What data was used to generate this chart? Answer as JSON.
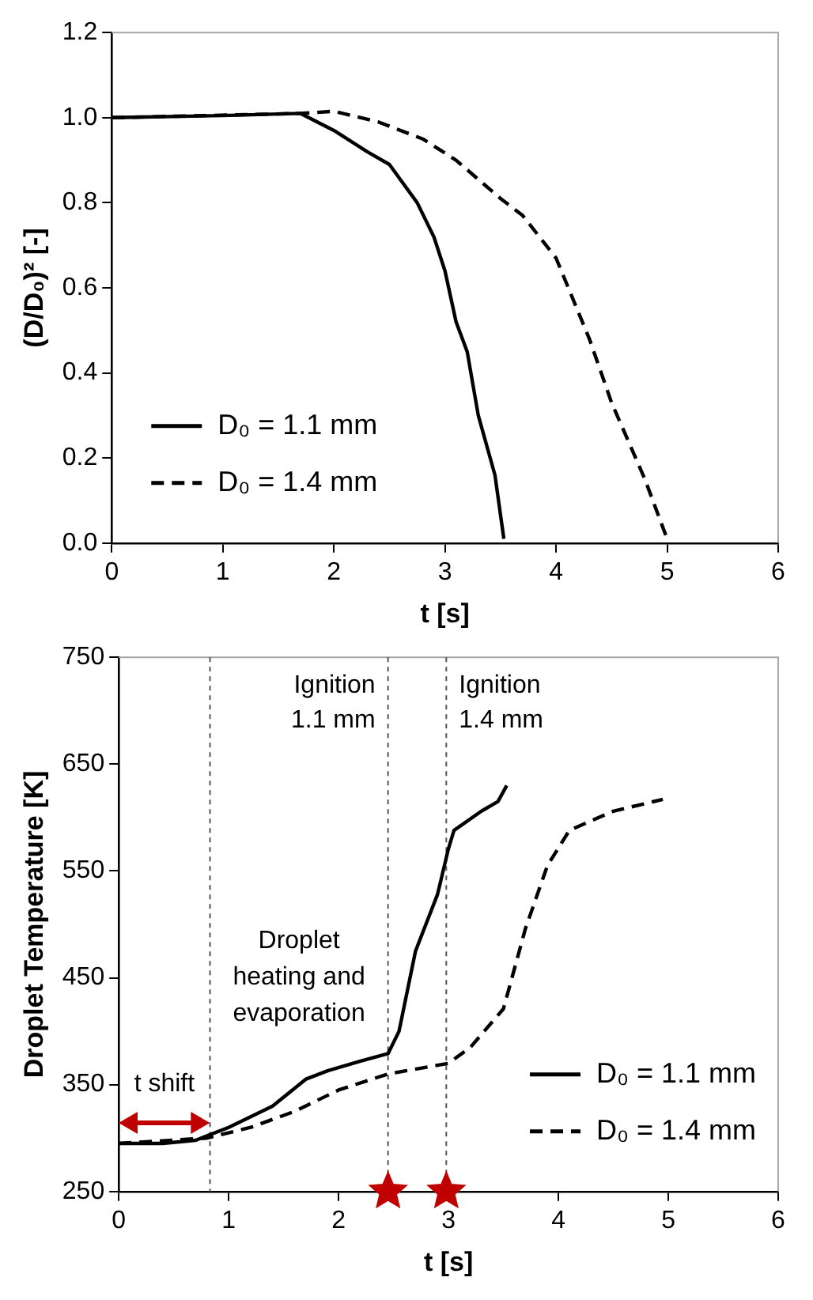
{
  "chart_data": [
    {
      "type": "line",
      "xlabel": "t [s]",
      "ylabel": "(D/D₀)² [-]",
      "xlim": [
        0,
        6
      ],
      "xticks": [
        0,
        1,
        2,
        3,
        4,
        5,
        6
      ],
      "ylim": [
        0,
        1.2
      ],
      "yticks": [
        {
          "value": 0,
          "label": "0.0"
        },
        0.2,
        0.4,
        0.6,
        0.8,
        {
          "value": 1,
          "label": "1.0"
        },
        1.2
      ],
      "legend": "bottom left",
      "marker": "none",
      "series": [
        {
          "name": "D₀ = 1.1 mm",
          "color": "#000000",
          "line_style": "solid",
          "x": [
            0,
            1,
            1.7,
            2,
            2.3,
            2.5,
            2.75,
            2.9,
            3.0,
            3.1,
            3.2,
            3.3,
            3.45,
            3.53
          ],
          "values": [
            1.0,
            1.005,
            1.01,
            0.97,
            0.92,
            0.89,
            0.8,
            0.72,
            0.64,
            0.52,
            0.45,
            0.3,
            0.16,
            0.01
          ]
        },
        {
          "name": "D₀ = 1.4 mm",
          "color": "#000000",
          "line_style": "dashed",
          "x": [
            0,
            1.7,
            2,
            2.4,
            2.8,
            3.1,
            3.5,
            3.7,
            4,
            4.3,
            4.5,
            4.8,
            5.0
          ],
          "values": [
            1.0,
            1.01,
            1.015,
            0.99,
            0.95,
            0.9,
            0.81,
            0.77,
            0.67,
            0.48,
            0.33,
            0.15,
            0.01
          ]
        }
      ]
    },
    {
      "type": "line",
      "xlabel": "t [s]",
      "ylabel": "Droplet Temperature [K]",
      "xlim": [
        0,
        6
      ],
      "xticks": [
        0,
        1,
        2,
        3,
        4,
        5,
        6
      ],
      "ylim": [
        250,
        750
      ],
      "yticks": [
        250,
        350,
        450,
        550,
        650,
        750
      ],
      "legend": "bottom right",
      "marker": "none",
      "series": [
        {
          "name": "D₀ = 1.1 mm",
          "color": "#000000",
          "line_style": "solid",
          "x": [
            0,
            0.4,
            0.7,
            1,
            1.4,
            1.7,
            1.9,
            2.2,
            2.45,
            2.55,
            2.7,
            2.9,
            3.0,
            3.05,
            3.3,
            3.45,
            3.53
          ],
          "values": [
            295,
            295,
            298,
            310,
            330,
            355,
            363,
            372,
            379,
            400,
            475,
            528,
            571,
            588,
            606,
            615,
            630
          ]
        },
        {
          "name": "D₀ = 1.4 mm",
          "color": "#000000",
          "line_style": "dashed",
          "x": [
            0,
            0.8,
            1.2,
            1.6,
            2,
            2.45,
            3.0,
            3.2,
            3.5,
            3.7,
            3.9,
            4.1,
            4.5,
            4.95
          ],
          "values": [
            295,
            300,
            310,
            325,
            345,
            360,
            370,
            385,
            421,
            496,
            555,
            588,
            606,
            617
          ]
        },
        {
          "type": "scatter",
          "color": "#c00000",
          "marker": "star",
          "x": [
            2.45,
            2.98
          ],
          "values": [
            250,
            250
          ]
        }
      ],
      "ref_lines": [
        {
          "axis": "x",
          "value": 0.83,
          "line_style": "dashed",
          "color": "#555555"
        },
        {
          "axis": "x",
          "value": 2.45,
          "label": "Ignition 1.1 mm",
          "line_style": "dashed",
          "color": "#555555"
        },
        {
          "axis": "x",
          "value": 2.98,
          "label": "Ignition 1.4 mm",
          "line_style": "dashed",
          "color": "#555555"
        }
      ],
      "annotations": [
        "Droplet heating and evaporation",
        "t shift"
      ]
    }
  ]
}
